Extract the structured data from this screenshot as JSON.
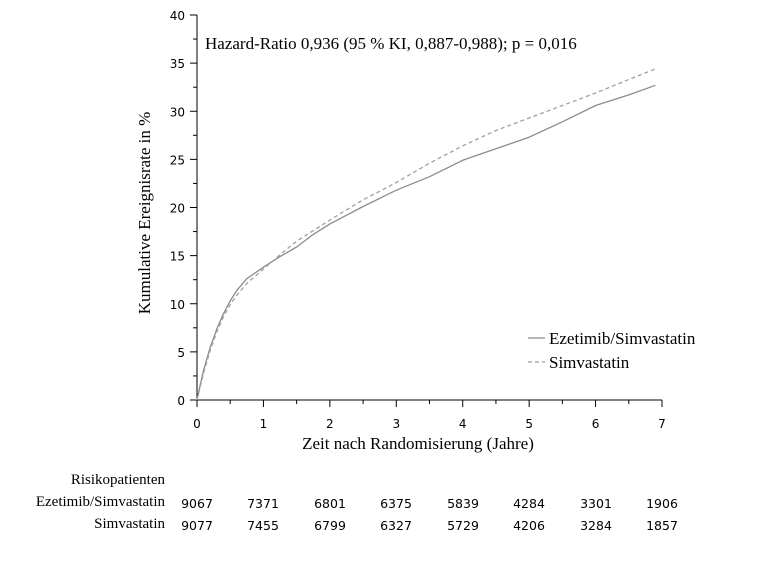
{
  "chart_data": {
    "type": "line",
    "annotation": "Hazard-Ratio 0,936 (95 % KI, 0,887-0,988); p = 0,016",
    "xlabel": "Zeit nach Randomisierung (Jahre)",
    "ylabel": "Kumulative Ereignisrate in %",
    "xlim": [
      0,
      7
    ],
    "ylim": [
      0,
      40
    ],
    "x_ticks": [
      "0",
      "1",
      "2",
      "3",
      "4",
      "5",
      "6",
      "7"
    ],
    "y_ticks": [
      "0",
      "5",
      "10",
      "15",
      "20",
      "25",
      "30",
      "35",
      "40"
    ],
    "legend_position": "bottom-right",
    "series": [
      {
        "name": "Ezetimib/Simvastatin",
        "style": "solid",
        "color": "#8c8c8c",
        "x": [
          0,
          0.05,
          0.1,
          0.2,
          0.3,
          0.4,
          0.5,
          0.6,
          0.75,
          1,
          1.25,
          1.5,
          1.75,
          2,
          2.5,
          3,
          3.5,
          4,
          4.5,
          5,
          5.5,
          6,
          6.5,
          6.9
        ],
        "y": [
          0,
          1.6,
          3.1,
          5.5,
          7.4,
          9.0,
          10.3,
          11.4,
          12.6,
          13.8,
          14.9,
          15.9,
          17.2,
          18.3,
          20.1,
          21.8,
          23.2,
          24.9,
          26.1,
          27.3,
          28.9,
          30.6,
          31.7,
          32.7
        ]
      },
      {
        "name": "Simvastatin",
        "style": "dashed",
        "color": "#a0a0a0",
        "x": [
          0,
          0.05,
          0.1,
          0.2,
          0.3,
          0.4,
          0.5,
          0.6,
          0.75,
          1,
          1.25,
          1.5,
          1.75,
          2,
          2.5,
          3,
          3.5,
          4,
          4.5,
          5,
          5.5,
          6,
          6.5,
          6.9
        ],
        "y": [
          0,
          1.4,
          2.8,
          5.2,
          7.1,
          8.7,
          9.9,
          10.9,
          12.1,
          13.6,
          15.1,
          16.5,
          17.6,
          18.7,
          20.8,
          22.6,
          24.6,
          26.4,
          28.0,
          29.3,
          30.6,
          31.9,
          33.3,
          34.4
        ]
      }
    ]
  },
  "risk_table": {
    "title": "Risikopatienten",
    "rows": [
      {
        "label": "Ezetimib/Simvastatin",
        "values": [
          "9067",
          "7371",
          "6801",
          "6375",
          "5839",
          "4284",
          "3301",
          "1906"
        ]
      },
      {
        "label": "Simvastatin",
        "values": [
          "9077",
          "7455",
          "6799",
          "6327",
          "5729",
          "4206",
          "3284",
          "1857"
        ]
      }
    ]
  }
}
